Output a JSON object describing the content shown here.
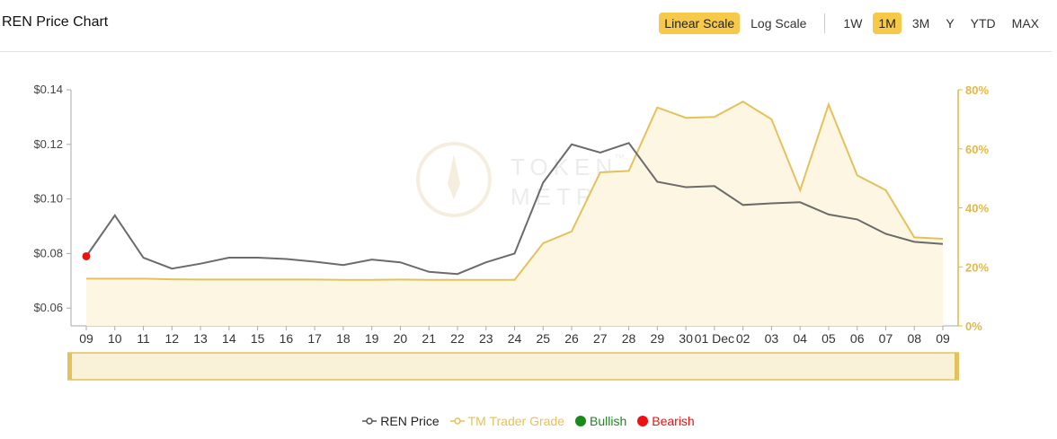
{
  "title": "REN Price Chart",
  "scale_buttons": [
    {
      "label": "Linear Scale",
      "active": true
    },
    {
      "label": "Log Scale",
      "active": false
    }
  ],
  "range_buttons": [
    {
      "label": "1W",
      "active": false
    },
    {
      "label": "1M",
      "active": true
    },
    {
      "label": "3M",
      "active": false
    },
    {
      "label": "Y",
      "active": false
    },
    {
      "label": "YTD",
      "active": false
    },
    {
      "label": "MAX",
      "active": false
    }
  ],
  "watermark": {
    "line1": "TOKEN",
    "line2": "METRICS",
    "tm": "™"
  },
  "legend": [
    {
      "label": "REN Price",
      "color": "#555555",
      "kind": "line"
    },
    {
      "label": "TM Trader Grade",
      "color": "#e8c05a",
      "kind": "line"
    },
    {
      "label": "Bullish",
      "color": "#1a8a1a",
      "kind": "dot"
    },
    {
      "label": "Bearish",
      "color": "#ee1111",
      "kind": "dot"
    }
  ],
  "colors": {
    "price": "#6b6b6b",
    "grade": "#e3c25b",
    "grade_fill": "#fdf6e3",
    "axis_right": "#e2b847",
    "bearish": "#ee1111"
  },
  "chart_data": {
    "type": "line",
    "x": [
      "09",
      "10",
      "11",
      "12",
      "13",
      "14",
      "15",
      "16",
      "17",
      "18",
      "19",
      "20",
      "21",
      "22",
      "23",
      "24",
      "25",
      "26",
      "27",
      "28",
      "29",
      "30",
      "01 Dec",
      "02",
      "03",
      "04",
      "05",
      "06",
      "07",
      "08",
      "09"
    ],
    "x_tick_labels": [
      "09",
      "10",
      "11",
      "12",
      "13",
      "14",
      "15",
      "16",
      "17",
      "18",
      "19",
      "20",
      "21",
      "22",
      "23",
      "24",
      "25",
      "26",
      "27",
      "28",
      "29",
      "30",
      "01 Dec",
      "02",
      "03",
      "04",
      "05",
      "06",
      "07",
      "08",
      "09"
    ],
    "series": [
      {
        "name": "REN Price",
        "axis": "left",
        "values": [
          0.079,
          0.094,
          0.0785,
          0.0745,
          0.0763,
          0.0785,
          0.0785,
          0.078,
          0.077,
          0.0758,
          0.0778,
          0.0768,
          0.0733,
          0.0725,
          0.0768,
          0.08,
          0.106,
          0.12,
          0.117,
          0.1205,
          0.1063,
          0.1043,
          0.1047,
          0.0978,
          0.0984,
          0.0988,
          0.0943,
          0.0925,
          0.0872,
          0.0843,
          0.0835
        ]
      },
      {
        "name": "TM Trader Grade",
        "axis": "right",
        "values": [
          16.0,
          16.0,
          16.0,
          15.8,
          15.7,
          15.7,
          15.7,
          15.7,
          15.7,
          15.6,
          15.6,
          15.7,
          15.6,
          15.6,
          15.6,
          15.6,
          28.0,
          32.0,
          52.0,
          52.5,
          74.0,
          70.5,
          70.8,
          76.0,
          70.0,
          46.0,
          75.0,
          51.0,
          46.0,
          30.0,
          29.5
        ]
      }
    ],
    "bearish_points": [
      {
        "x": "09",
        "value": 0.079
      }
    ],
    "y_left": {
      "ticks": [
        "$0.06",
        "$0.08",
        "$0.10",
        "$0.12",
        "$0.14"
      ],
      "range": [
        0.0535,
        0.14
      ]
    },
    "y_right": {
      "ticks": [
        "0%",
        "20%",
        "40%",
        "60%",
        "80%"
      ],
      "range": [
        0,
        80
      ]
    },
    "grid": false,
    "legend_position": "bottom"
  }
}
